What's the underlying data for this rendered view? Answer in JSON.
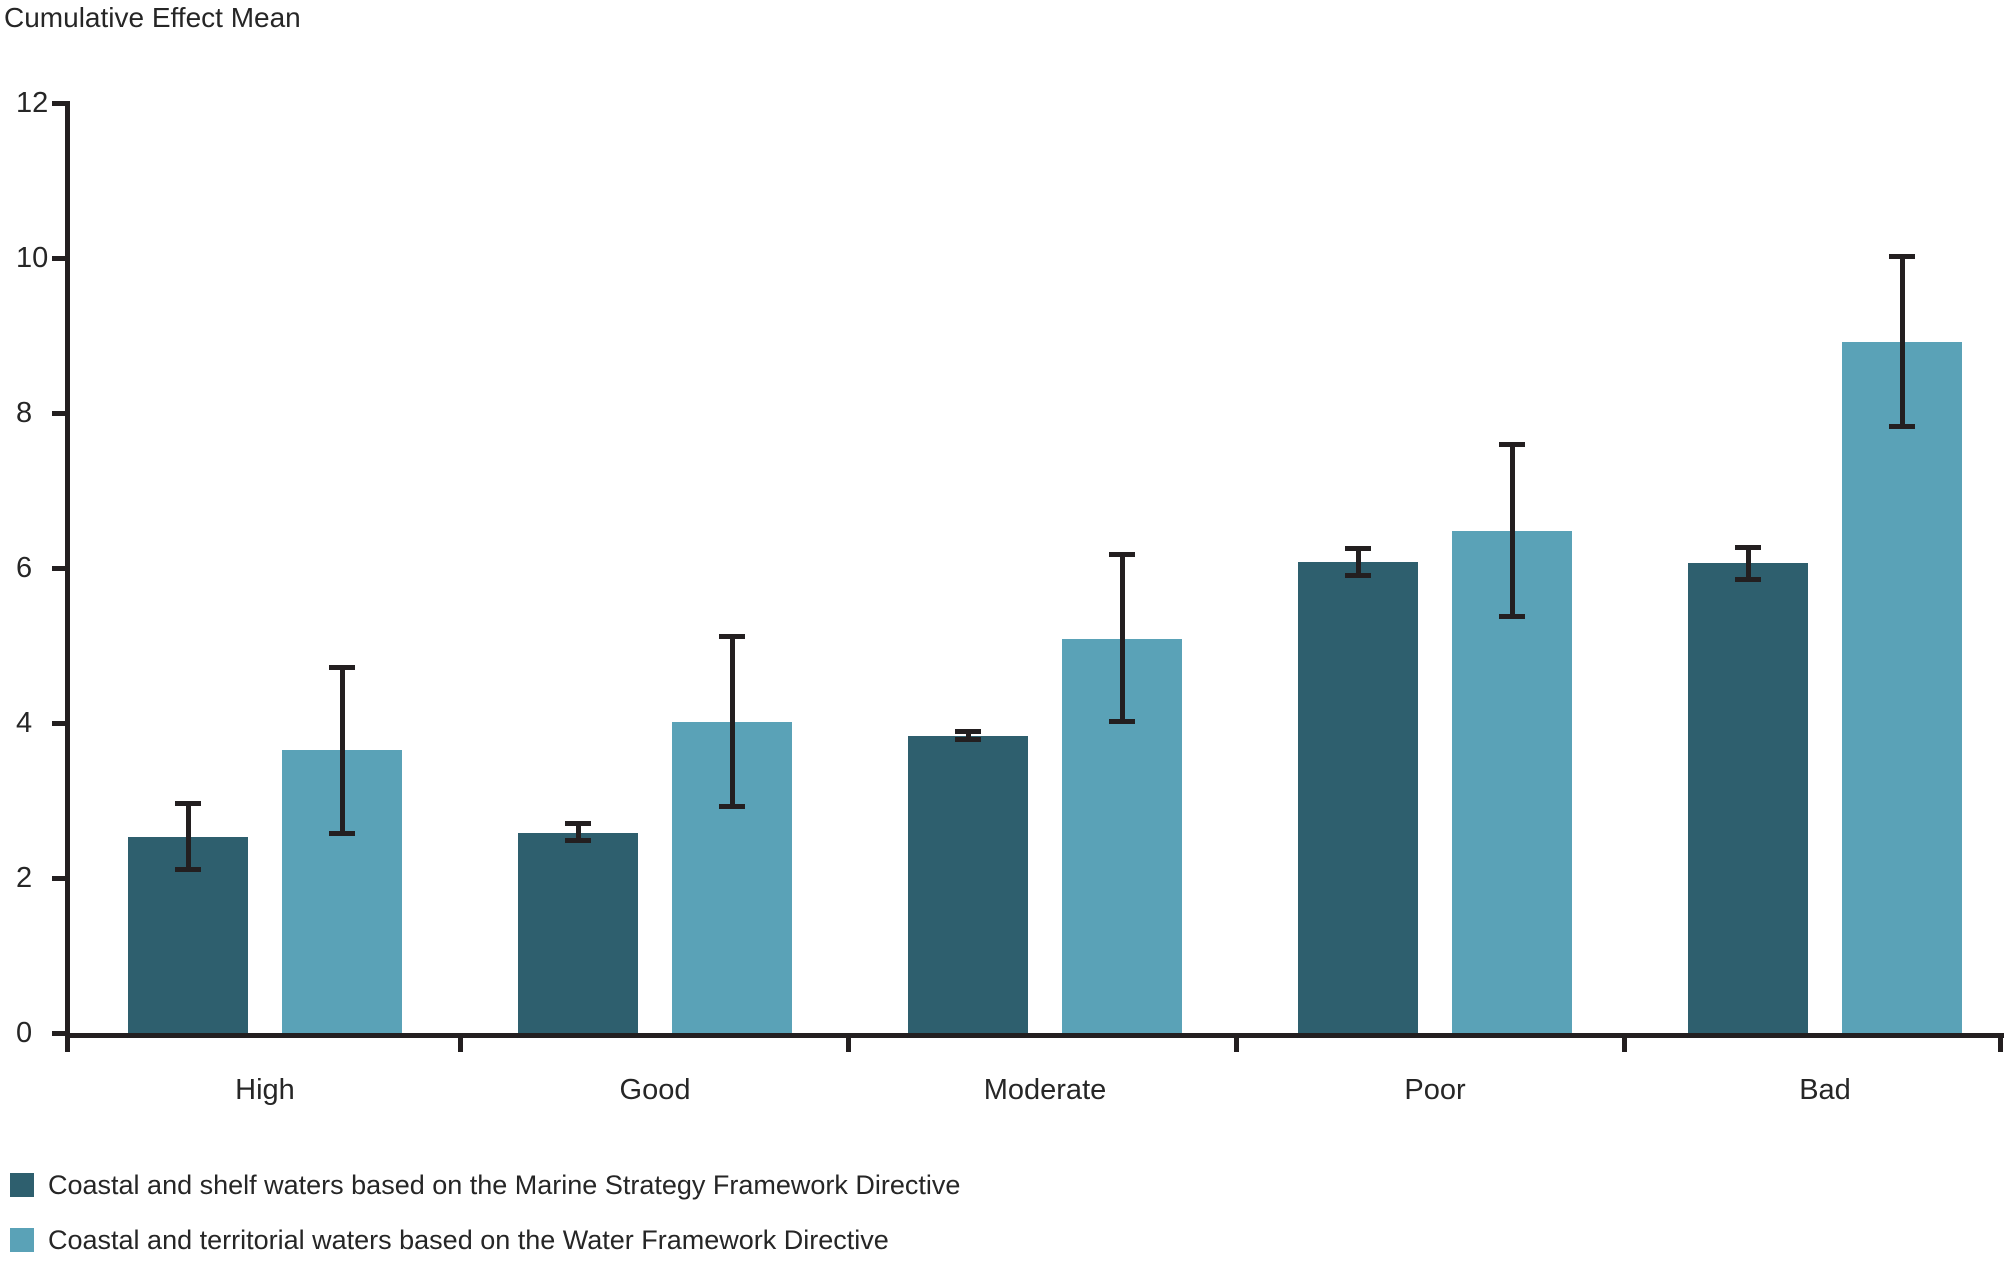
{
  "title": "Cumulative Effect Mean",
  "chart_data": {
    "type": "bar",
    "title": "Cumulative Effect Mean",
    "xlabel": "",
    "ylabel": "Cumulative Effect Mean",
    "categories": [
      "High",
      "Good",
      "Moderate",
      "Poor",
      "Bad"
    ],
    "series": [
      {
        "name": "Coastal and shelf waters based on the Marine Strategy Framework Directive",
        "color": "#2e5f6e",
        "values": [
          2.53,
          2.58,
          3.83,
          6.08,
          6.06
        ],
        "err_low": [
          2.08,
          2.45,
          3.75,
          5.87,
          5.82
        ],
        "err_high": [
          2.99,
          2.74,
          3.92,
          6.28,
          6.3
        ]
      },
      {
        "name": "Coastal and territorial waters based on the Water Framework Directive",
        "color": "#5aa2b7",
        "values": [
          3.65,
          4.01,
          5.08,
          6.48,
          8.92
        ],
        "err_low": [
          2.54,
          2.89,
          3.99,
          5.34,
          7.79
        ],
        "err_high": [
          4.75,
          5.15,
          6.21,
          7.63,
          10.05
        ]
      }
    ],
    "ylim": [
      0,
      12
    ],
    "yticks": [
      0,
      2,
      4,
      6,
      8,
      10,
      12
    ],
    "grid": false,
    "error_bars": true,
    "legend_position": "bottom-left",
    "axis_color": "#231f20"
  },
  "legend": {
    "items": [
      {
        "label": "Coastal and shelf waters based on the Marine Strategy Framework Directive",
        "color": "#2e5f6e"
      },
      {
        "label": "Coastal and territorial waters based on the Water Framework Directive",
        "color": "#5aa2b7"
      }
    ]
  }
}
